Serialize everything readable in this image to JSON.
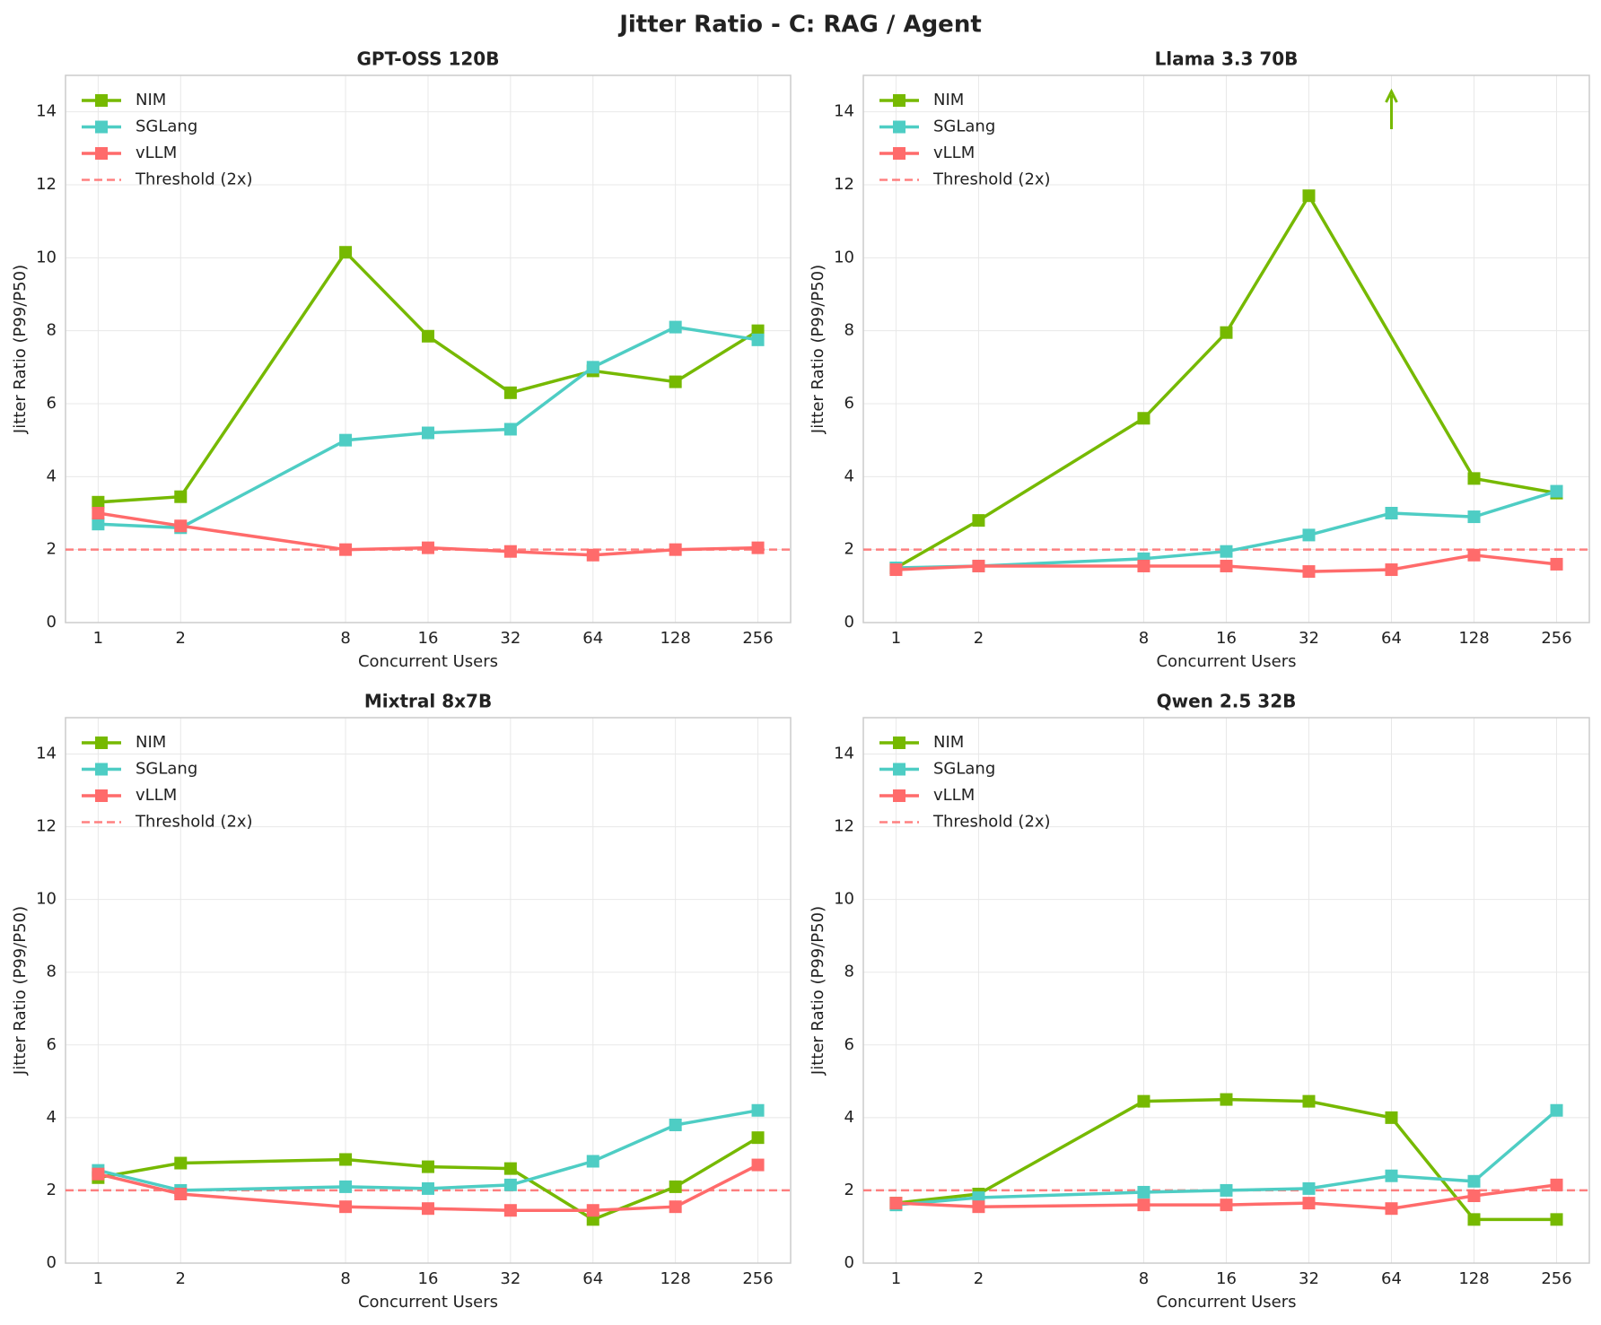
{
  "title": "Jitter Ratio - C: RAG / Agent",
  "chart_data": [
    {
      "type": "line",
      "title": "GPT-OSS 120B",
      "xlabel": "Concurrent Users",
      "ylabel": "Jitter Ratio (P99/P50)",
      "x": [
        1,
        2,
        8,
        16,
        32,
        64,
        128,
        256
      ],
      "xscale": "log2",
      "xlim": [
        0.76,
        337
      ],
      "xticks": [
        1,
        2,
        8,
        16,
        32,
        64,
        128,
        256
      ],
      "ylim": [
        0,
        15
      ],
      "yticks": [
        0,
        2,
        4,
        6,
        8,
        10,
        12,
        14
      ],
      "grid": true,
      "legend": "upper left",
      "series": [
        {
          "name": "NIM",
          "color": "#76b900",
          "values": [
            3.3,
            3.45,
            10.15,
            7.85,
            6.3,
            6.9,
            6.6,
            8.0
          ]
        },
        {
          "name": "SGLang",
          "color": "#4ecdc4",
          "values": [
            2.7,
            2.6,
            5.0,
            5.2,
            5.3,
            7.0,
            8.1,
            7.75
          ]
        },
        {
          "name": "vLLM",
          "color": "#ff6b6b",
          "values": [
            3.0,
            2.65,
            2.0,
            2.05,
            1.95,
            1.85,
            2.0,
            2.05
          ]
        }
      ],
      "threshold": {
        "name": "Threshold (2x)",
        "value": 2,
        "color": "#ff6b6b"
      }
    },
    {
      "type": "line",
      "title": "Llama 3.3 70B",
      "xlabel": "Concurrent Users",
      "ylabel": "Jitter Ratio (P99/P50)",
      "x": [
        1,
        2,
        8,
        16,
        32,
        64,
        128,
        256
      ],
      "xscale": "log2",
      "xlim": [
        0.76,
        337
      ],
      "xticks": [
        1,
        2,
        8,
        16,
        32,
        64,
        128,
        256
      ],
      "ylim": [
        0,
        15
      ],
      "yticks": [
        0,
        2,
        4,
        6,
        8,
        10,
        12,
        14
      ],
      "grid": true,
      "legend": "upper left",
      "series": [
        {
          "name": "NIM",
          "color": "#76b900",
          "x": [
            1,
            2,
            8,
            16,
            32,
            128,
            256
          ],
          "values": [
            1.5,
            2.8,
            5.6,
            7.95,
            11.7,
            3.95,
            3.55
          ]
        },
        {
          "name": "SGLang",
          "color": "#4ecdc4",
          "values": [
            1.5,
            1.55,
            1.75,
            1.95,
            2.4,
            3.0,
            2.9,
            3.6
          ]
        },
        {
          "name": "vLLM",
          "color": "#ff6b6b",
          "values": [
            1.45,
            1.55,
            1.55,
            1.55,
            1.4,
            1.45,
            1.85,
            1.6
          ]
        }
      ],
      "threshold": {
        "name": "Threshold (2x)",
        "value": 2,
        "color": "#ff6b6b"
      }
    },
    {
      "type": "line",
      "title": "Mixtral 8x7B",
      "xlabel": "Concurrent Users",
      "ylabel": "Jitter Ratio (P99/P50)",
      "x": [
        1,
        2,
        8,
        16,
        32,
        64,
        128,
        256
      ],
      "xscale": "log2",
      "xlim": [
        0.76,
        337
      ],
      "xticks": [
        1,
        2,
        8,
        16,
        32,
        64,
        128,
        256
      ],
      "ylim": [
        0,
        15
      ],
      "yticks": [
        0,
        2,
        4,
        6,
        8,
        10,
        12,
        14
      ],
      "grid": true,
      "legend": "upper left",
      "series": [
        {
          "name": "NIM",
          "color": "#76b900",
          "values": [
            2.35,
            2.75,
            2.85,
            2.65,
            2.6,
            1.2,
            2.1,
            3.45
          ]
        },
        {
          "name": "SGLang",
          "color": "#4ecdc4",
          "values": [
            2.55,
            2.0,
            2.1,
            2.05,
            2.15,
            2.8,
            3.8,
            4.2
          ]
        },
        {
          "name": "vLLM",
          "color": "#ff6b6b",
          "values": [
            2.45,
            1.9,
            1.55,
            1.5,
            1.45,
            1.45,
            1.55,
            2.7
          ]
        }
      ],
      "threshold": {
        "name": "Threshold (2x)",
        "value": 2,
        "color": "#ff6b6b"
      }
    },
    {
      "type": "line",
      "title": "Qwen 2.5 32B",
      "xlabel": "Concurrent Users",
      "ylabel": "Jitter Ratio (P99/P50)",
      "x": [
        1,
        2,
        8,
        16,
        32,
        64,
        128,
        256
      ],
      "xscale": "log2",
      "xlim": [
        0.76,
        337
      ],
      "xticks": [
        1,
        2,
        8,
        16,
        32,
        64,
        128,
        256
      ],
      "ylim": [
        0,
        15
      ],
      "yticks": [
        0,
        2,
        4,
        6,
        8,
        10,
        12,
        14
      ],
      "grid": true,
      "legend": "upper left",
      "series": [
        {
          "name": "NIM",
          "color": "#76b900",
          "values": [
            1.65,
            1.9,
            4.45,
            4.5,
            4.45,
            4.0,
            1.2,
            1.2
          ]
        },
        {
          "name": "SGLang",
          "color": "#4ecdc4",
          "values": [
            1.6,
            1.8,
            1.95,
            2.0,
            2.05,
            2.4,
            2.25,
            4.2
          ]
        },
        {
          "name": "vLLM",
          "color": "#ff6b6b",
          "values": [
            1.65,
            1.55,
            1.6,
            1.6,
            1.65,
            1.5,
            1.85,
            2.15
          ]
        }
      ],
      "threshold": {
        "name": "Threshold (2x)",
        "value": 2,
        "color": "#ff6b6b"
      }
    }
  ]
}
